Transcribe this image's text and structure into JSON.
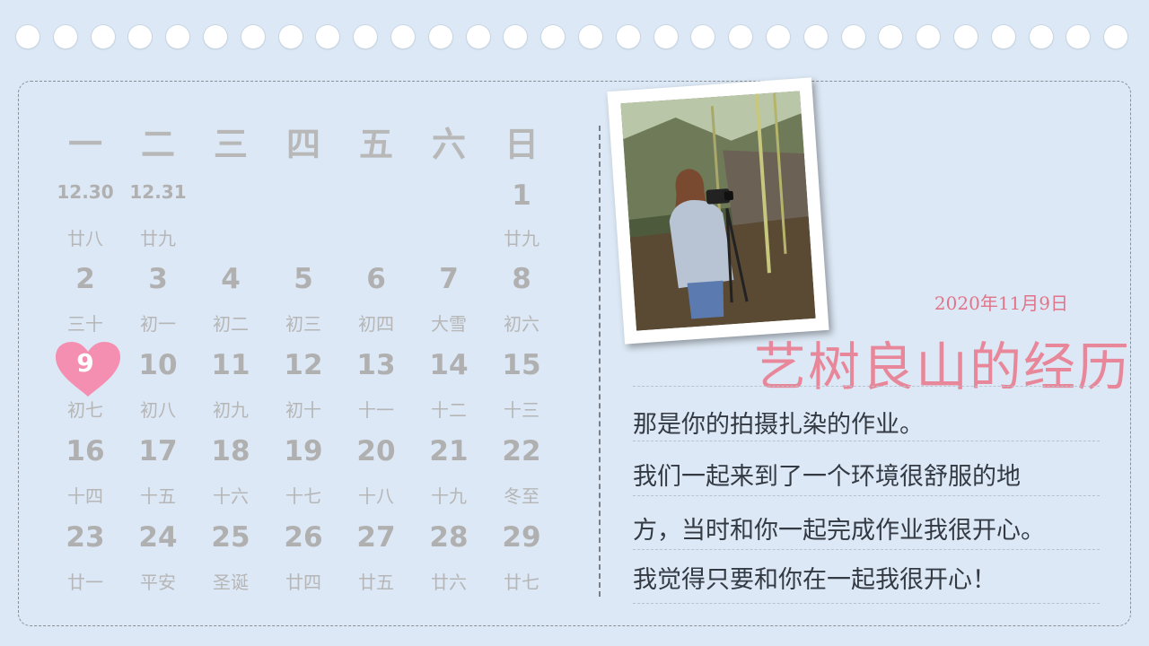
{
  "calendar": {
    "weekdays": [
      "一",
      "二",
      "三",
      "四",
      "五",
      "六",
      "日"
    ],
    "weeks": [
      [
        {
          "day": "12.30",
          "lunar": "廿八"
        },
        {
          "day": "12.31",
          "lunar": "廿九"
        },
        {
          "day": "",
          "lunar": ""
        },
        {
          "day": "",
          "lunar": ""
        },
        {
          "day": "",
          "lunar": ""
        },
        {
          "day": "",
          "lunar": ""
        },
        {
          "day": "1",
          "lunar": "廿九"
        }
      ],
      [
        {
          "day": "2",
          "lunar": "三十"
        },
        {
          "day": "3",
          "lunar": "初一"
        },
        {
          "day": "4",
          "lunar": "初二"
        },
        {
          "day": "5",
          "lunar": "初三"
        },
        {
          "day": "6",
          "lunar": "初四"
        },
        {
          "day": "7",
          "lunar": "大雪"
        },
        {
          "day": "8",
          "lunar": "初六"
        }
      ],
      [
        {
          "day": "9",
          "lunar": "初七"
        },
        {
          "day": "10",
          "lunar": "初八"
        },
        {
          "day": "11",
          "lunar": "初九"
        },
        {
          "day": "12",
          "lunar": "初十"
        },
        {
          "day": "13",
          "lunar": "十一"
        },
        {
          "day": "14",
          "lunar": "十二"
        },
        {
          "day": "15",
          "lunar": "十三"
        }
      ],
      [
        {
          "day": "16",
          "lunar": "十四"
        },
        {
          "day": "17",
          "lunar": "十五"
        },
        {
          "day": "18",
          "lunar": "十六"
        },
        {
          "day": "19",
          "lunar": "十七"
        },
        {
          "day": "20",
          "lunar": "十八"
        },
        {
          "day": "21",
          "lunar": "十九"
        },
        {
          "day": "22",
          "lunar": "冬至"
        }
      ],
      [
        {
          "day": "23",
          "lunar": "廿一"
        },
        {
          "day": "24",
          "lunar": "平安"
        },
        {
          "day": "25",
          "lunar": "圣诞"
        },
        {
          "day": "26",
          "lunar": "廿四"
        },
        {
          "day": "27",
          "lunar": "廿五"
        },
        {
          "day": "28",
          "lunar": "廿六"
        },
        {
          "day": "29",
          "lunar": "廿七"
        }
      ]
    ],
    "highlighted_day": "9",
    "highlight_color": "#f48fb1"
  },
  "photo": {
    "icon": "photo-of-person-with-camera"
  },
  "entry": {
    "date": "2020年11月9日",
    "title": "艺树良山的经历",
    "lines": [
      "那是你的拍摄扎染的作业。",
      "我们一起来到了一个环境很舒服的地",
      "方，当时和你一起完成作业我很开心。",
      "我觉得只要和你在一起我很开心！"
    ]
  },
  "colors": {
    "background": "#dce8f5",
    "accent": "#e8879a"
  }
}
